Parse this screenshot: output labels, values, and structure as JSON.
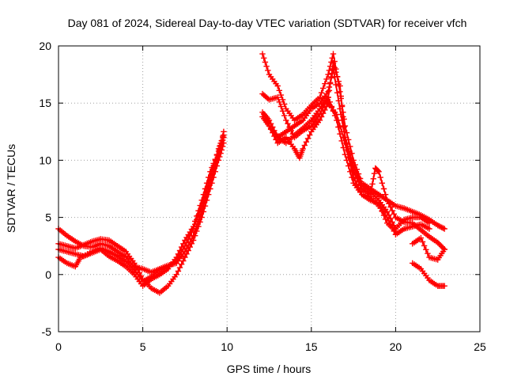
{
  "chart_data": {
    "type": "scatter",
    "title": "Day 081 of 2024, Sidereal Day-to-day VTEC variation (SDTVAR) for receiver vfch",
    "xlabel": "GPS time / hours",
    "ylabel": "SDTVAR / TECUs",
    "xlim": [
      0,
      25
    ],
    "ylim": [
      -5,
      20
    ],
    "x_ticks": [
      "0",
      "5",
      "10",
      "15",
      "20",
      "25"
    ],
    "y_ticks": [
      "-5",
      "0",
      "5",
      "10",
      "15",
      "20"
    ],
    "x_tick_values": [
      0,
      5,
      10,
      15,
      20,
      25
    ],
    "y_tick_values": [
      -5,
      0,
      5,
      10,
      15,
      20
    ],
    "grid": true,
    "marker": "+",
    "color": "#ff0000",
    "series": [
      {
        "name": "trace-1",
        "points": [
          [
            0.0,
            4.0
          ],
          [
            0.5,
            3.4
          ],
          [
            1.0,
            2.9
          ],
          [
            1.5,
            2.5
          ],
          [
            2.0,
            2.4
          ],
          [
            2.5,
            2.7
          ],
          [
            3.0,
            2.5
          ],
          [
            3.5,
            2.0
          ],
          [
            4.0,
            1.5
          ],
          [
            4.5,
            0.7
          ],
          [
            5.0,
            0.5
          ],
          [
            5.5,
            0.2
          ],
          [
            6.0,
            0.5
          ],
          [
            6.5,
            0.8
          ],
          [
            7.0,
            1.0
          ],
          [
            7.5,
            2.0
          ],
          [
            8.0,
            3.4
          ],
          [
            8.5,
            5.5
          ],
          [
            9.0,
            8.0
          ],
          [
            9.5,
            10.5
          ],
          [
            9.8,
            12.5
          ]
        ]
      },
      {
        "name": "trace-2",
        "points": [
          [
            0.0,
            2.7
          ],
          [
            0.5,
            2.5
          ],
          [
            1.0,
            2.3
          ],
          [
            1.5,
            2.6
          ],
          [
            2.0,
            2.9
          ],
          [
            2.5,
            3.1
          ],
          [
            3.0,
            3.0
          ],
          [
            3.5,
            2.5
          ],
          [
            4.0,
            2.0
          ],
          [
            4.5,
            1.0
          ],
          [
            5.0,
            -0.4
          ],
          [
            5.5,
            -1.2
          ],
          [
            6.0,
            -1.6
          ],
          [
            6.5,
            -1.0
          ],
          [
            7.0,
            0.0
          ],
          [
            7.5,
            1.5
          ],
          [
            8.0,
            3.0
          ],
          [
            8.5,
            5.0
          ],
          [
            9.0,
            7.5
          ],
          [
            9.5,
            10.0
          ],
          [
            9.8,
            11.5
          ]
        ]
      },
      {
        "name": "trace-3",
        "points": [
          [
            0.0,
            1.5
          ],
          [
            0.5,
            1.0
          ],
          [
            1.0,
            0.7
          ],
          [
            1.3,
            1.5
          ],
          [
            2.0,
            2.0
          ],
          [
            2.5,
            2.3
          ],
          [
            3.0,
            2.0
          ],
          [
            3.5,
            1.6
          ],
          [
            4.0,
            1.1
          ],
          [
            4.5,
            0.4
          ],
          [
            5.0,
            -0.6
          ],
          [
            5.5,
            -0.2
          ],
          [
            6.0,
            0.4
          ],
          [
            6.5,
            0.7
          ],
          [
            7.0,
            1.2
          ],
          [
            7.5,
            2.5
          ],
          [
            8.0,
            4.0
          ],
          [
            8.5,
            6.0
          ],
          [
            9.0,
            8.5
          ],
          [
            9.5,
            11.0
          ],
          [
            9.8,
            12.2
          ]
        ]
      },
      {
        "name": "trace-4",
        "points": [
          [
            0.0,
            2.2
          ],
          [
            0.5,
            2.0
          ],
          [
            1.0,
            1.8
          ],
          [
            1.5,
            1.6
          ],
          [
            2.0,
            1.9
          ],
          [
            2.5,
            2.2
          ],
          [
            3.0,
            1.6
          ],
          [
            3.5,
            1.2
          ],
          [
            4.0,
            0.7
          ],
          [
            4.5,
            0.0
          ],
          [
            5.0,
            -1.0
          ],
          [
            5.5,
            -0.4
          ],
          [
            6.0,
            0.0
          ],
          [
            6.5,
            0.5
          ],
          [
            7.0,
            1.5
          ],
          [
            7.5,
            3.0
          ],
          [
            8.0,
            4.2
          ],
          [
            8.5,
            6.5
          ],
          [
            9.0,
            9.0
          ],
          [
            9.5,
            10.8
          ],
          [
            9.8,
            12.0
          ]
        ]
      },
      {
        "name": "trace-5",
        "points": [
          [
            12.1,
            19.3
          ],
          [
            12.5,
            17.5
          ],
          [
            13.0,
            16.5
          ],
          [
            13.5,
            14.5
          ],
          [
            14.0,
            13.5
          ],
          [
            14.5,
            14.0
          ],
          [
            15.0,
            14.8
          ],
          [
            15.5,
            15.5
          ],
          [
            16.0,
            17.5
          ],
          [
            16.3,
            19.3
          ],
          [
            16.7,
            16.0
          ],
          [
            17.0,
            13.0
          ],
          [
            17.5,
            10.0
          ],
          [
            18.0,
            8.0
          ],
          [
            18.5,
            7.5
          ],
          [
            19.0,
            7.0
          ],
          [
            19.5,
            6.5
          ],
          [
            20.0,
            6.0
          ],
          [
            20.5,
            5.8
          ],
          [
            21.0,
            5.5
          ],
          [
            21.5,
            5.2
          ],
          [
            22.0,
            4.8
          ],
          [
            22.5,
            4.3
          ],
          [
            22.9,
            4.0
          ]
        ]
      },
      {
        "name": "trace-6",
        "points": [
          [
            12.1,
            15.8
          ],
          [
            12.5,
            15.3
          ],
          [
            13.0,
            15.5
          ],
          [
            13.5,
            13.5
          ],
          [
            14.0,
            12.0
          ],
          [
            14.5,
            12.6
          ],
          [
            15.0,
            13.0
          ],
          [
            15.5,
            14.0
          ],
          [
            16.0,
            15.5
          ],
          [
            16.3,
            18.5
          ],
          [
            16.7,
            16.5
          ],
          [
            17.0,
            12.0
          ],
          [
            17.5,
            9.0
          ],
          [
            18.0,
            7.5
          ],
          [
            18.5,
            7.0
          ],
          [
            18.8,
            9.3
          ],
          [
            19.0,
            9.0
          ],
          [
            19.5,
            6.5
          ],
          [
            20.0,
            5.0
          ],
          [
            20.5,
            4.6
          ],
          [
            21.0,
            4.5
          ],
          [
            21.5,
            3.9
          ],
          [
            22.0,
            3.3
          ],
          [
            22.5,
            2.8
          ],
          [
            22.9,
            2.2
          ]
        ]
      },
      {
        "name": "trace-7",
        "points": [
          [
            12.1,
            14.2
          ],
          [
            12.5,
            13.5
          ],
          [
            13.0,
            12.0
          ],
          [
            13.5,
            12.5
          ],
          [
            14.0,
            13.0
          ],
          [
            14.5,
            13.5
          ],
          [
            15.0,
            14.5
          ],
          [
            15.5,
            15.0
          ],
          [
            16.0,
            16.0
          ],
          [
            16.3,
            18.0
          ],
          [
            16.7,
            14.5
          ],
          [
            17.0,
            12.0
          ],
          [
            17.5,
            9.5
          ],
          [
            18.0,
            7.8
          ],
          [
            18.5,
            7.3
          ],
          [
            19.0,
            6.5
          ],
          [
            19.5,
            5.5
          ],
          [
            20.0,
            4.0
          ],
          [
            20.5,
            4.8
          ],
          [
            21.0,
            5.0
          ],
          [
            21.5,
            5.0
          ],
          [
            22.0,
            4.5
          ]
        ]
      },
      {
        "name": "trace-8",
        "points": [
          [
            12.1,
            13.8
          ],
          [
            12.5,
            13.0
          ],
          [
            13.0,
            11.5
          ],
          [
            13.5,
            12.0
          ],
          [
            14.0,
            11.0
          ],
          [
            14.3,
            10.2
          ],
          [
            14.5,
            11.0
          ],
          [
            15.0,
            12.5
          ],
          [
            15.5,
            13.5
          ],
          [
            16.0,
            15.0
          ],
          [
            16.5,
            14.0
          ],
          [
            17.0,
            11.5
          ],
          [
            17.5,
            8.5
          ],
          [
            18.0,
            7.0
          ],
          [
            18.5,
            6.8
          ],
          [
            19.0,
            6.0
          ],
          [
            19.5,
            5.0
          ],
          [
            20.0,
            3.5
          ],
          [
            20.5,
            4.0
          ],
          [
            21.0,
            4.2
          ],
          [
            21.5,
            4.4
          ],
          [
            22.0,
            4.0
          ]
        ]
      },
      {
        "name": "trace-9",
        "points": [
          [
            12.2,
            14.0
          ],
          [
            12.5,
            13.0
          ],
          [
            13.0,
            12.0
          ],
          [
            13.5,
            11.5
          ],
          [
            14.0,
            12.2
          ],
          [
            14.5,
            12.8
          ],
          [
            15.0,
            13.5
          ],
          [
            15.5,
            14.5
          ],
          [
            16.0,
            15.5
          ],
          [
            16.5,
            13.5
          ],
          [
            17.0,
            10.5
          ],
          [
            17.5,
            8.0
          ],
          [
            18.0,
            7.0
          ],
          [
            18.5,
            6.5
          ],
          [
            19.0,
            6.2
          ],
          [
            19.5,
            4.5
          ],
          [
            20.0,
            3.8
          ]
        ]
      },
      {
        "name": "trace-10",
        "points": [
          [
            21.0,
            2.7
          ],
          [
            21.5,
            3.2
          ],
          [
            22.0,
            1.5
          ],
          [
            22.5,
            1.3
          ],
          [
            22.9,
            2.2
          ]
        ]
      },
      {
        "name": "trace-11",
        "points": [
          [
            21.0,
            1.0
          ],
          [
            21.5,
            0.5
          ],
          [
            22.0,
            -0.5
          ],
          [
            22.5,
            -1.0
          ],
          [
            22.9,
            -1.0
          ]
        ]
      }
    ]
  }
}
